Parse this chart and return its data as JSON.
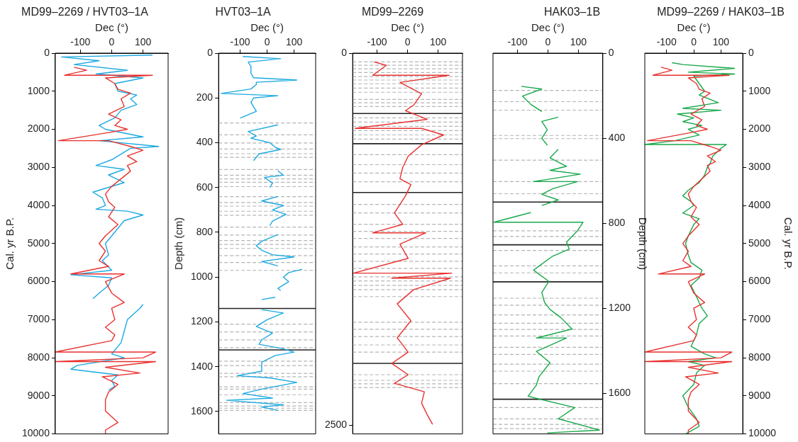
{
  "chart_data": [
    {
      "type": "line",
      "title": "MD99–2269 / HVT03–1A",
      "xlabel": "Dec (°)",
      "ylabel": "Cal. yr B.P.",
      "xlim": [
        -180,
        180
      ],
      "xticks": [
        -100,
        0,
        100
      ],
      "ylim": [
        10000,
        0
      ],
      "yticks": [
        0,
        1000,
        2000,
        3000,
        4000,
        5000,
        6000,
        7000,
        8000,
        9000,
        10000
      ],
      "series": [
        {
          "color": "#e8312f",
          "x": [
            -120,
            -80,
            -150,
            130,
            -20,
            10,
            20,
            60,
            30,
            40,
            -10,
            30,
            10,
            50,
            -20,
            -170,
            -10,
            60,
            100,
            50,
            80,
            50,
            60,
            30,
            0,
            -20,
            -10,
            10,
            -10,
            20,
            -20,
            -40,
            -20,
            -40,
            -10,
            -130,
            40,
            -20,
            0,
            40,
            0,
            10,
            -20,
            10,
            0,
            -180,
            140,
            100,
            -180,
            140,
            -20,
            90,
            -30,
            20,
            -10,
            -20,
            -20,
            20,
            -20,
            -20
          ],
          "values": [
            370,
            450,
            580,
            580,
            650,
            800,
            950,
            1050,
            1200,
            1400,
            1600,
            1750,
            1900,
            2000,
            2100,
            2300,
            2300,
            2450,
            2550,
            2700,
            2850,
            2950,
            3100,
            3300,
            3500,
            3700,
            3900,
            4050,
            4300,
            4500,
            4800,
            5000,
            5200,
            5450,
            5600,
            5800,
            5800,
            6000,
            6300,
            6550,
            6700,
            7000,
            7200,
            7400,
            7550,
            7850,
            7850,
            8000,
            8100,
            8100,
            8250,
            8400,
            8500,
            8700,
            8900,
            9100,
            9400,
            9700,
            9900,
            10000
          ]
        },
        {
          "color": "#1ba9e1",
          "x": [
            130,
            -160,
            -40,
            -120,
            50,
            -50,
            100,
            10,
            20,
            80,
            60,
            80,
            30,
            10,
            -40,
            -20,
            100,
            -40,
            150,
            60,
            0,
            -50,
            40,
            -10,
            40,
            -60,
            -30,
            -20,
            -50,
            50,
            100,
            40,
            20,
            0,
            -20,
            -10,
            -30,
            0,
            -130,
            0,
            -10,
            -40,
            -60,
            null,
            100,
            90,
            50,
            40,
            30,
            0,
            40,
            -110,
            -130,
            20,
            0,
            10,
            -10
          ],
          "values": [
            50,
            100,
            200,
            300,
            450,
            550,
            650,
            800,
            1000,
            1100,
            1200,
            1350,
            1500,
            1700,
            1900,
            2000,
            2200,
            2300,
            2450,
            2500,
            2800,
            2950,
            3050,
            3200,
            3400,
            3650,
            3800,
            4000,
            4100,
            4150,
            4250,
            4400,
            4600,
            4800,
            5000,
            5300,
            5450,
            5700,
            5820,
            5900,
            6100,
            6300,
            6450,
            null,
            6600,
            6700,
            7000,
            7300,
            7600,
            7900,
            8000,
            8200,
            8300,
            8450,
            8600,
            8750,
            8850
          ]
        }
      ]
    },
    {
      "type": "line",
      "title": "HVT03–1A",
      "xlabel": "Dec (°)",
      "ylabel": "Depth (cm)",
      "xlim": [
        -180,
        180
      ],
      "xticks": [
        -100,
        0,
        100
      ],
      "ylim": [
        1700,
        0
      ],
      "yticks": [
        0,
        200,
        400,
        600,
        800,
        1000,
        1200,
        1400,
        1600
      ],
      "series": [
        {
          "color": "#1ba9e1",
          "x": [
            -90,
            50,
            -70,
            -60,
            -60,
            -50,
            110,
            -40,
            -40,
            -60,
            -170,
            40,
            -50,
            -60,
            -40,
            -80,
            -100,
            null,
            40,
            -70,
            -40,
            -60,
            10,
            30,
            50,
            -30,
            -50,
            null,
            40,
            60,
            -10,
            20,
            10,
            null,
            40,
            -20,
            60,
            20,
            70,
            20,
            10,
            null,
            40,
            -20,
            -40,
            -20,
            20,
            100,
            -20,
            40,
            null,
            130,
            80,
            60,
            80,
            40,
            50,
            null,
            30,
            -20,
            null,
            -20,
            60,
            0,
            -40,
            20,
            -20,
            -30,
            60,
            100,
            30,
            -20,
            -20,
            -110,
            10,
            110,
            -20,
            -90,
            20,
            -150,
            60,
            -20,
            40
          ],
          "values": [
            15,
            25,
            40,
            60,
            90,
            110,
            120,
            130,
            140,
            160,
            180,
            190,
            200,
            220,
            260,
            280,
            290,
            null,
            320,
            350,
            370,
            380,
            400,
            420,
            430,
            450,
            480,
            null,
            525,
            545,
            555,
            580,
            600,
            null,
            640,
            660,
            680,
            700,
            720,
            750,
            770,
            null,
            810,
            840,
            860,
            880,
            900,
            910,
            930,
            950,
            null,
            965,
            980,
            1000,
            1020,
            1050,
            1060,
            null,
            1090,
            1100,
            null,
            1145,
            1160,
            1190,
            1220,
            1250,
            1280,
            1300,
            1320,
            1335,
            1350,
            1380,
            1420,
            1440,
            1450,
            1470,
            1500,
            1520,
            1540,
            1550,
            1570,
            1580,
            1595
          ]
        }
      ],
      "ref_lines": [
        {
          "axis": "y",
          "value": 312,
          "color": "#b4b4b4",
          "line_style": "dashed"
        },
        {
          "axis": "y",
          "value": 365,
          "color": "#b4b4b4",
          "line_style": "dashed"
        },
        {
          "axis": "y",
          "value": 401,
          "color": "#b4b4b4",
          "line_style": "dashed"
        },
        {
          "axis": "y",
          "value": 428,
          "color": "#b4b4b4",
          "line_style": "dashed"
        },
        {
          "axis": "y",
          "value": 449,
          "color": "#b4b4b4",
          "line_style": "dashed"
        },
        {
          "axis": "y",
          "value": 465,
          "color": "#b4b4b4",
          "line_style": "dashed"
        },
        {
          "axis": "y",
          "value": 520,
          "color": "#b4b4b4",
          "line_style": "dashed"
        },
        {
          "axis": "y",
          "value": 545,
          "color": "#b4b4b4",
          "line_style": "dashed"
        },
        {
          "axis": "y",
          "value": 562,
          "color": "#b4b4b4",
          "line_style": "dashed"
        },
        {
          "axis": "y",
          "value": 577,
          "color": "#b4b4b4",
          "line_style": "dashed"
        },
        {
          "axis": "y",
          "value": 596,
          "color": "#b4b4b4",
          "line_style": "dashed"
        },
        {
          "axis": "y",
          "value": 641,
          "color": "#b4b4b4",
          "line_style": "dashed"
        },
        {
          "axis": "y",
          "value": 667,
          "color": "#b4b4b4",
          "line_style": "dashed"
        },
        {
          "axis": "y",
          "value": 683,
          "color": "#b4b4b4",
          "line_style": "dashed"
        },
        {
          "axis": "y",
          "value": 706,
          "color": "#b4b4b4",
          "line_style": "dashed"
        },
        {
          "axis": "y",
          "value": 724,
          "color": "#b4b4b4",
          "line_style": "dashed"
        },
        {
          "axis": "y",
          "value": 777,
          "color": "#b4b4b4",
          "line_style": "dashed"
        },
        {
          "axis": "y",
          "value": 812,
          "color": "#b4b4b4",
          "line_style": "dashed"
        },
        {
          "axis": "y",
          "value": 837,
          "color": "#b4b4b4",
          "line_style": "dashed"
        },
        {
          "axis": "y",
          "value": 854,
          "color": "#b4b4b4",
          "line_style": "dashed"
        },
        {
          "axis": "y",
          "value": 872,
          "color": "#b4b4b4",
          "line_style": "dashed"
        },
        {
          "axis": "y",
          "value": 904,
          "color": "#b4b4b4",
          "line_style": "dashed"
        },
        {
          "axis": "y",
          "value": 935,
          "color": "#b4b4b4",
          "line_style": "dashed"
        },
        {
          "axis": "y",
          "value": 970,
          "color": "#b4b4b4",
          "line_style": "dashed"
        },
        {
          "axis": "y",
          "value": 1140,
          "color": "#222222",
          "line_style": "solid"
        },
        {
          "axis": "y",
          "value": 1210,
          "color": "#b4b4b4",
          "line_style": "dashed"
        },
        {
          "axis": "y",
          "value": 1245,
          "color": "#b4b4b4",
          "line_style": "dashed"
        },
        {
          "axis": "y",
          "value": 1280,
          "color": "#b4b4b4",
          "line_style": "dashed"
        },
        {
          "axis": "y",
          "value": 1315,
          "color": "#b4b4b4",
          "line_style": "dashed"
        },
        {
          "axis": "y",
          "value": 1325,
          "color": "#222222",
          "line_style": "solid"
        },
        {
          "axis": "y",
          "value": 1375,
          "color": "#b4b4b4",
          "line_style": "dashed"
        },
        {
          "axis": "y",
          "value": 1395,
          "color": "#b4b4b4",
          "line_style": "dashed"
        },
        {
          "axis": "y",
          "value": 1430,
          "color": "#b4b4b4",
          "line_style": "dashed"
        },
        {
          "axis": "y",
          "value": 1445,
          "color": "#b4b4b4",
          "line_style": "dashed"
        },
        {
          "axis": "y",
          "value": 1490,
          "color": "#b4b4b4",
          "line_style": "dashed"
        },
        {
          "axis": "y",
          "value": 1500,
          "color": "#b4b4b4",
          "line_style": "dashed"
        },
        {
          "axis": "y",
          "value": 1525,
          "color": "#b4b4b4",
          "line_style": "dashed"
        },
        {
          "axis": "y",
          "value": 1560,
          "color": "#b4b4b4",
          "line_style": "dashed"
        },
        {
          "axis": "y",
          "value": 1575,
          "color": "#b4b4b4",
          "line_style": "dashed"
        },
        {
          "axis": "y",
          "value": 1585,
          "color": "#b4b4b4",
          "line_style": "dashed"
        },
        {
          "axis": "y",
          "value": 1595,
          "color": "#b4b4b4",
          "line_style": "dashed"
        }
      ]
    },
    {
      "type": "line",
      "title": "MD99–2269",
      "xlabel": "Dec (°)",
      "xlim": [
        -180,
        180
      ],
      "xticks": [
        -100,
        0,
        100
      ],
      "ylim": [
        2560,
        0
      ],
      "yticks": [
        0,
        2500
      ],
      "series": [
        {
          "color": "#e8312f",
          "x": [
            -110,
            -70,
            -114,
            136,
            -25,
            46,
            20,
            -7,
            64,
            -172,
            46,
            118,
            46,
            2,
            -16,
            -25,
            11,
            -7,
            -43,
            -16,
            -114,
            60,
            -25,
            2,
            -177,
            145,
            -52,
            140,
            20,
            -34,
            11,
            -34,
            2,
            -52,
            2,
            -43,
            55,
            46,
            64,
            82
          ],
          "values": [
            59,
            82,
            149,
            149,
            197,
            273,
            349,
            387,
            445,
            506,
            506,
            550,
            616,
            693,
            769,
            845,
            884,
            960,
            1074,
            1151,
            1208,
            1208,
            1284,
            1380,
            1479,
            1479,
            1513,
            1513,
            1590,
            1685,
            1799,
            1914,
            2010,
            2086,
            2162,
            2220,
            2277,
            2353,
            2429,
            2496
          ]
        }
      ],
      "ref_lines": [
        {
          "axis": "y",
          "value": 59,
          "color": "#b4b4b4",
          "line_style": "dashed"
        },
        {
          "axis": "y",
          "value": 82,
          "color": "#b4b4b4",
          "line_style": "dashed"
        },
        {
          "axis": "y",
          "value": 105,
          "color": "#b4b4b4",
          "line_style": "dashed"
        },
        {
          "axis": "y",
          "value": 130,
          "color": "#b4b4b4",
          "line_style": "dashed"
        },
        {
          "axis": "y",
          "value": 158,
          "color": "#b4b4b4",
          "line_style": "dashed"
        },
        {
          "axis": "y",
          "value": 181,
          "color": "#b4b4b4",
          "line_style": "dashed"
        },
        {
          "axis": "y",
          "value": 206,
          "color": "#b4b4b4",
          "line_style": "dashed"
        },
        {
          "axis": "y",
          "value": 235,
          "color": "#b4b4b4",
          "line_style": "dashed"
        },
        {
          "axis": "y",
          "value": 263,
          "color": "#b4b4b4",
          "line_style": "dashed"
        },
        {
          "axis": "y",
          "value": 311,
          "color": "#b4b4b4",
          "line_style": "dashed"
        },
        {
          "axis": "y",
          "value": 334,
          "color": "#b4b4b4",
          "line_style": "dashed"
        },
        {
          "axis": "y",
          "value": 359,
          "color": "#b4b4b4",
          "line_style": "dashed"
        },
        {
          "axis": "y",
          "value": 406,
          "color": "#222222",
          "line_style": "solid"
        },
        {
          "axis": "y",
          "value": 435,
          "color": "#b4b4b4",
          "line_style": "dashed"
        },
        {
          "axis": "y",
          "value": 464,
          "color": "#b4b4b4",
          "line_style": "dashed"
        },
        {
          "axis": "y",
          "value": 492,
          "color": "#b4b4b4",
          "line_style": "dashed"
        },
        {
          "axis": "y",
          "value": 521,
          "color": "#b4b4b4",
          "line_style": "dashed"
        },
        {
          "axis": "y",
          "value": 550,
          "color": "#b4b4b4",
          "line_style": "dashed"
        },
        {
          "axis": "y",
          "value": 578,
          "color": "#b4b4b4",
          "line_style": "dashed"
        },
        {
          "axis": "y",
          "value": 609,
          "color": "#222222",
          "line_style": "solid"
        },
        {
          "axis": "y",
          "value": 683,
          "color": "#b4b4b4",
          "line_style": "dashed"
        },
        {
          "axis": "y",
          "value": 750,
          "color": "#b4b4b4",
          "line_style": "dashed"
        },
        {
          "axis": "y",
          "value": 807,
          "color": "#b4b4b4",
          "line_style": "dashed"
        },
        {
          "axis": "y",
          "value": 865,
          "color": "#b4b4b4",
          "line_style": "dashed"
        },
        {
          "axis": "y",
          "value": 937,
          "color": "#222222",
          "line_style": "solid"
        },
        {
          "axis": "y",
          "value": 1017,
          "color": "#b4b4b4",
          "line_style": "dashed"
        },
        {
          "axis": "y",
          "value": 1074,
          "color": "#b4b4b4",
          "line_style": "dashed"
        },
        {
          "axis": "y",
          "value": 1151,
          "color": "#b4b4b4",
          "line_style": "dashed"
        },
        {
          "axis": "y",
          "value": 1198,
          "color": "#b4b4b4",
          "line_style": "dashed"
        },
        {
          "axis": "y",
          "value": 1246,
          "color": "#b4b4b4",
          "line_style": "dashed"
        },
        {
          "axis": "y",
          "value": 1303,
          "color": "#b4b4b4",
          "line_style": "dashed"
        },
        {
          "axis": "y",
          "value": 1351,
          "color": "#b4b4b4",
          "line_style": "dashed"
        },
        {
          "axis": "y",
          "value": 1399,
          "color": "#b4b4b4",
          "line_style": "dashed"
        },
        {
          "axis": "y",
          "value": 1447,
          "color": "#b4b4b4",
          "line_style": "dashed"
        },
        {
          "axis": "y",
          "value": 1504,
          "color": "#b4b4b4",
          "line_style": "dashed"
        },
        {
          "axis": "y",
          "value": 1532,
          "color": "#b4b4b4",
          "line_style": "dashed"
        },
        {
          "axis": "y",
          "value": 1561,
          "color": "#b4b4b4",
          "line_style": "dashed"
        },
        {
          "axis": "y",
          "value": 1590,
          "color": "#b4b4b4",
          "line_style": "dashed"
        },
        {
          "axis": "y",
          "value": 1637,
          "color": "#b4b4b4",
          "line_style": "dashed"
        },
        {
          "axis": "y",
          "value": 1809,
          "color": "#b4b4b4",
          "line_style": "dashed"
        },
        {
          "axis": "y",
          "value": 1857,
          "color": "#b4b4b4",
          "line_style": "dashed"
        },
        {
          "axis": "y",
          "value": 1905,
          "color": "#b4b4b4",
          "line_style": "dashed"
        },
        {
          "axis": "y",
          "value": 1962,
          "color": "#b4b4b4",
          "line_style": "dashed"
        },
        {
          "axis": "y",
          "value": 2010,
          "color": "#b4b4b4",
          "line_style": "dashed"
        },
        {
          "axis": "y",
          "value": 2086,
          "color": "#222222",
          "line_style": "solid"
        },
        {
          "axis": "y",
          "value": 2162,
          "color": "#b4b4b4",
          "line_style": "dashed"
        },
        {
          "axis": "y",
          "value": 2200,
          "color": "#b4b4b4",
          "line_style": "dashed"
        },
        {
          "axis": "y",
          "value": 2223,
          "color": "#b4b4b4",
          "line_style": "dashed"
        },
        {
          "axis": "y",
          "value": 2248,
          "color": "#b4b4b4",
          "line_style": "dashed"
        }
      ]
    },
    {
      "type": "line",
      "title": "HAK03–1B",
      "xlabel": "Dec (°)",
      "y2label": "Depth (cm)",
      "xlim": [
        -180,
        180
      ],
      "xticks": [
        -100,
        0,
        100
      ],
      "y2lim": [
        1790,
        0
      ],
      "y2ticks": [
        0,
        400,
        800,
        1200,
        1600
      ],
      "series": [
        {
          "color": "#17a84a",
          "axis": "y2",
          "x": [
            -87,
            -20,
            -83,
            -56,
            -20,
            null,
            34,
            -20,
            -2,
            -20,
            -2,
            null,
            34,
            7,
            61,
            7,
            106,
            -47,
            97,
            16,
            -20,
            34,
            -20,
            null,
            -56,
            -177,
            115,
            97,
            61,
            70,
            16,
            -47,
            3,
            -20,
            -11,
            7,
            43,
            79,
            -38,
            61,
            -38,
            7,
            -29,
            -38,
            -65,
            88,
            34,
            169,
            -2
          ],
          "values": [
            156,
            169,
            202,
            241,
            274,
            null,
            301,
            321,
            360,
            400,
            433,
            null,
            452,
            492,
            532,
            551,
            569,
            604,
            604,
            637,
            664,
            690,
            716,
            null,
            749,
            795,
            795,
            835,
            888,
            921,
            954,
            1020,
            1073,
            1125,
            1172,
            1205,
            1244,
            1297,
            1339,
            1339,
            1402,
            1455,
            1521,
            1561,
            1613,
            1666,
            1719,
            1772,
            1785
          ]
        }
      ],
      "ref_lines": [
        {
          "axis": "y2",
          "value": 175,
          "color": "#b4b4b4",
          "line_style": "dashed"
        },
        {
          "axis": "y2",
          "value": 228,
          "color": "#b4b4b4",
          "line_style": "dashed"
        },
        {
          "axis": "y2",
          "value": 268,
          "color": "#b4b4b4",
          "line_style": "dashed"
        },
        {
          "axis": "y2",
          "value": 387,
          "color": "#b4b4b4",
          "line_style": "dashed"
        },
        {
          "axis": "y2",
          "value": 402,
          "color": "#b4b4b4",
          "line_style": "dashed"
        },
        {
          "axis": "y2",
          "value": 503,
          "color": "#b4b4b4",
          "line_style": "dashed"
        },
        {
          "axis": "y2",
          "value": 604,
          "color": "#b4b4b4",
          "line_style": "dashed"
        },
        {
          "axis": "y2",
          "value": 661,
          "color": "#b4b4b4",
          "line_style": "dashed"
        },
        {
          "axis": "y2",
          "value": 700,
          "color": "#222222",
          "line_style": "solid"
        },
        {
          "axis": "y2",
          "value": 835,
          "color": "#b4b4b4",
          "line_style": "dashed"
        },
        {
          "axis": "y2",
          "value": 862,
          "color": "#b4b4b4",
          "line_style": "dashed"
        },
        {
          "axis": "y2",
          "value": 901,
          "color": "#222222",
          "line_style": "solid"
        },
        {
          "axis": "y2",
          "value": 928,
          "color": "#b4b4b4",
          "line_style": "dashed"
        },
        {
          "axis": "y2",
          "value": 1000,
          "color": "#b4b4b4",
          "line_style": "dashed"
        },
        {
          "axis": "y2",
          "value": 1033,
          "color": "#b4b4b4",
          "line_style": "dashed"
        },
        {
          "axis": "y2",
          "value": 1075,
          "color": "#222222",
          "line_style": "solid"
        },
        {
          "axis": "y2",
          "value": 1152,
          "color": "#b4b4b4",
          "line_style": "dashed"
        },
        {
          "axis": "y2",
          "value": 1185,
          "color": "#b4b4b4",
          "line_style": "dashed"
        },
        {
          "axis": "y2",
          "value": 1231,
          "color": "#b4b4b4",
          "line_style": "dashed"
        },
        {
          "axis": "y2",
          "value": 1270,
          "color": "#b4b4b4",
          "line_style": "dashed"
        },
        {
          "axis": "y2",
          "value": 1299,
          "color": "#b4b4b4",
          "line_style": "dashed"
        },
        {
          "axis": "y2",
          "value": 1330,
          "color": "#b4b4b4",
          "line_style": "dashed"
        },
        {
          "axis": "y2",
          "value": 1383,
          "color": "#b4b4b4",
          "line_style": "dashed"
        },
        {
          "axis": "y2",
          "value": 1416,
          "color": "#b4b4b4",
          "line_style": "dashed"
        },
        {
          "axis": "y2",
          "value": 1462,
          "color": "#b4b4b4",
          "line_style": "dashed"
        },
        {
          "axis": "y2",
          "value": 1495,
          "color": "#b4b4b4",
          "line_style": "dashed"
        },
        {
          "axis": "y2",
          "value": 1554,
          "color": "#b4b4b4",
          "line_style": "dashed"
        },
        {
          "axis": "y2",
          "value": 1627,
          "color": "#222222",
          "line_style": "solid"
        },
        {
          "axis": "y2",
          "value": 1666,
          "color": "#b4b4b4",
          "line_style": "dashed"
        },
        {
          "axis": "y2",
          "value": 1719,
          "color": "#b4b4b4",
          "line_style": "dashed"
        },
        {
          "axis": "y2",
          "value": 1745,
          "color": "#b4b4b4",
          "line_style": "dashed"
        },
        {
          "axis": "y2",
          "value": 1765,
          "color": "#b4b4b4",
          "line_style": "dashed"
        }
      ]
    },
    {
      "type": "line",
      "title": "MD99–2269 / HAK03–1B",
      "xlabel": "Dec (°)",
      "y2label": "Cal. yr B.P.",
      "xlim": [
        -180,
        180
      ],
      "xticks": [
        -100,
        0,
        100
      ],
      "y2lim": [
        10000,
        0
      ],
      "y2ticks": [
        0,
        1000,
        2000,
        3000,
        4000,
        5000,
        6000,
        7000,
        8000,
        9000,
        10000
      ],
      "series": [
        {
          "color": "#e8312f",
          "axis": "y2",
          "x": [
            -120,
            -80,
            -150,
            130,
            -20,
            10,
            20,
            60,
            30,
            40,
            -10,
            30,
            10,
            50,
            -20,
            -170,
            -10,
            60,
            100,
            50,
            80,
            50,
            60,
            30,
            0,
            -20,
            -10,
            10,
            -10,
            20,
            -20,
            -40,
            -20,
            -40,
            -10,
            -130,
            40,
            -20,
            0,
            40,
            0,
            10,
            -20,
            10,
            0,
            -180,
            140,
            100,
            -180,
            140,
            -20,
            90,
            -30,
            20,
            -10,
            -20,
            -20,
            20,
            -20,
            -20
          ],
          "values": [
            370,
            450,
            580,
            580,
            650,
            800,
            950,
            1050,
            1200,
            1400,
            1600,
            1750,
            1900,
            2000,
            2100,
            2300,
            2300,
            2450,
            2550,
            2700,
            2850,
            2950,
            3100,
            3300,
            3500,
            3700,
            3900,
            4050,
            4300,
            4500,
            4800,
            5000,
            5200,
            5450,
            5600,
            5800,
            5800,
            6000,
            6300,
            6550,
            6700,
            7000,
            7200,
            7400,
            7550,
            7850,
            7850,
            8000,
            8100,
            8100,
            8250,
            8400,
            8500,
            8700,
            8900,
            9100,
            9400,
            9700,
            9900,
            10000
          ]
        },
        {
          "color": "#17a84a",
          "axis": "y2",
          "x": [
            -80,
            -40,
            150,
            -20,
            150,
            0,
            20,
            40,
            20,
            90,
            -40,
            100,
            -60,
            0,
            -40,
            30,
            -20,
            20,
            -70,
            -180,
            120,
            100,
            70,
            60,
            50,
            40,
            20,
            -20,
            -40,
            -10,
            0,
            -40,
            20,
            0,
            -20,
            -30,
            -20,
            -10,
            30,
            20,
            -10,
            10,
            30,
            50,
            20,
            10,
            -10,
            40,
            80,
            -20,
            40,
            10,
            0,
            -40,
            -20,
            10,
            20,
            -30
          ],
          "values": [
            250,
            300,
            400,
            500,
            550,
            600,
            800,
            1000,
            1100,
            1300,
            1450,
            1500,
            1600,
            1700,
            1800,
            1900,
            2000,
            2150,
            2300,
            2400,
            2400,
            2500,
            2700,
            2900,
            3000,
            3200,
            3400,
            3600,
            3750,
            3900,
            4000,
            4200,
            4350,
            4500,
            4800,
            5000,
            5300,
            5500,
            5700,
            5900,
            6100,
            6400,
            6700,
            6900,
            7100,
            7400,
            7700,
            7900,
            8000,
            8100,
            8200,
            8400,
            8700,
            9000,
            9300,
            9600,
            9800,
            10000
          ]
        }
      ]
    }
  ]
}
